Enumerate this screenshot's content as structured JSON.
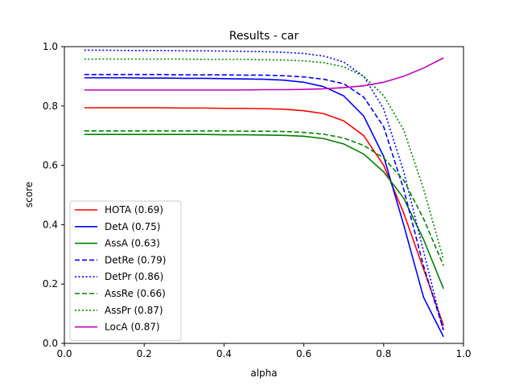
{
  "chart_data": {
    "type": "line",
    "title": "Results - car",
    "xlabel": "alpha",
    "ylabel": "score",
    "xlim": [
      0.0,
      1.0
    ],
    "ylim": [
      0.0,
      1.0
    ],
    "xticks": [
      "0.0",
      "0.2",
      "0.4",
      "0.6",
      "0.8",
      "1.0"
    ],
    "yticks": [
      "0.0",
      "0.2",
      "0.4",
      "0.6",
      "0.8",
      "1.0"
    ],
    "grid": false,
    "legend_position": "lower-left",
    "x": [
      0.05,
      0.1,
      0.15,
      0.2,
      0.25,
      0.3,
      0.35,
      0.4,
      0.45,
      0.5,
      0.55,
      0.6,
      0.65,
      0.7,
      0.75,
      0.8,
      0.85,
      0.9,
      0.95
    ],
    "series": [
      {
        "name": "HOTA (0.69)",
        "color": "#ff0000",
        "dash": "solid",
        "values": [
          0.794,
          0.794,
          0.794,
          0.794,
          0.794,
          0.793,
          0.793,
          0.792,
          0.792,
          0.791,
          0.789,
          0.784,
          0.774,
          0.75,
          0.7,
          0.6,
          0.44,
          0.25,
          0.06
        ]
      },
      {
        "name": "DetA (0.75)",
        "color": "#0000ff",
        "dash": "solid",
        "values": [
          0.895,
          0.895,
          0.895,
          0.894,
          0.894,
          0.893,
          0.893,
          0.892,
          0.891,
          0.89,
          0.887,
          0.88,
          0.865,
          0.834,
          0.766,
          0.63,
          0.4,
          0.155,
          0.022
        ]
      },
      {
        "name": "AssA (0.63)",
        "color": "#008000",
        "dash": "solid",
        "values": [
          0.704,
          0.704,
          0.704,
          0.704,
          0.704,
          0.704,
          0.704,
          0.703,
          0.703,
          0.702,
          0.701,
          0.698,
          0.69,
          0.672,
          0.638,
          0.578,
          0.49,
          0.35,
          0.184
        ]
      },
      {
        "name": "DetRe (0.79)",
        "color": "#0000ff",
        "dash": "dashed",
        "values": [
          0.906,
          0.906,
          0.906,
          0.906,
          0.906,
          0.905,
          0.905,
          0.905,
          0.904,
          0.904,
          0.902,
          0.898,
          0.89,
          0.875,
          0.83,
          0.73,
          0.52,
          0.26,
          0.045
        ]
      },
      {
        "name": "DetPr (0.86)",
        "color": "#0000ff",
        "dash": "dotted",
        "values": [
          0.988,
          0.988,
          0.987,
          0.987,
          0.987,
          0.986,
          0.986,
          0.985,
          0.984,
          0.983,
          0.981,
          0.977,
          0.968,
          0.948,
          0.9,
          0.79,
          0.58,
          0.31,
          0.04
        ]
      },
      {
        "name": "AssRe (0.66)",
        "color": "#008000",
        "dash": "dashed",
        "values": [
          0.716,
          0.716,
          0.716,
          0.716,
          0.716,
          0.716,
          0.716,
          0.716,
          0.715,
          0.715,
          0.714,
          0.711,
          0.705,
          0.692,
          0.667,
          0.625,
          0.55,
          0.42,
          0.262
        ]
      },
      {
        "name": "AssPr (0.87)",
        "color": "#008000",
        "dash": "dotted",
        "values": [
          0.958,
          0.958,
          0.958,
          0.958,
          0.958,
          0.958,
          0.957,
          0.957,
          0.957,
          0.956,
          0.955,
          0.952,
          0.946,
          0.932,
          0.9,
          0.835,
          0.72,
          0.52,
          0.282
        ]
      },
      {
        "name": "LocA (0.87)",
        "color": "#bf00bf",
        "dash": "solid",
        "values": [
          0.854,
          0.854,
          0.854,
          0.854,
          0.854,
          0.854,
          0.854,
          0.854,
          0.854,
          0.855,
          0.855,
          0.856,
          0.858,
          0.862,
          0.868,
          0.88,
          0.9,
          0.928,
          0.962
        ]
      }
    ]
  }
}
